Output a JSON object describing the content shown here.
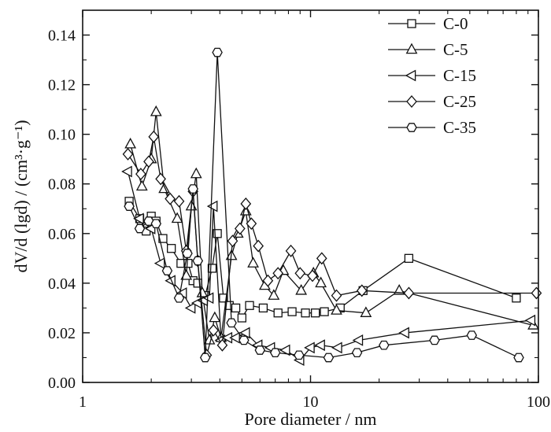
{
  "chart_data": {
    "type": "line",
    "xscale": "log",
    "xlim": [
      1,
      100
    ],
    "ylim": [
      0,
      0.15
    ],
    "xticks": [
      {
        "value": 1,
        "label": "1"
      },
      {
        "value": 10,
        "label": "10"
      },
      {
        "value": 100,
        "label": "100"
      }
    ],
    "yticks": [
      {
        "value": 0.0,
        "label": "0.00"
      },
      {
        "value": 0.02,
        "label": "0.02"
      },
      {
        "value": 0.04,
        "label": "0.04"
      },
      {
        "value": 0.06,
        "label": "0.06"
      },
      {
        "value": 0.08,
        "label": "0.08"
      },
      {
        "value": 0.1,
        "label": "0.10"
      },
      {
        "value": 0.12,
        "label": "0.12"
      },
      {
        "value": 0.14,
        "label": "0.14"
      }
    ],
    "xlabel": "Pore diameter / nm",
    "ylabel": "dV/d (lgd) / (cm³·g⁻¹)",
    "legend_position": "top-right",
    "grid": false,
    "series": [
      {
        "name": "C-0",
        "marker": "square",
        "x": [
          1.6,
          1.78,
          1.9,
          2.0,
          2.1,
          2.25,
          2.45,
          2.7,
          2.9,
          3.05,
          3.2,
          3.45,
          3.7,
          3.9,
          4.15,
          4.4,
          4.7,
          5.0,
          5.4,
          6.2,
          7.2,
          8.3,
          9.5,
          10.5,
          11.5,
          13.5,
          17,
          27,
          80
        ],
        "y": [
          0.073,
          0.066,
          0.061,
          0.067,
          0.065,
          0.058,
          0.054,
          0.048,
          0.048,
          0.041,
          0.04,
          0.035,
          0.046,
          0.06,
          0.034,
          0.031,
          0.03,
          0.026,
          0.031,
          0.03,
          0.028,
          0.0285,
          0.028,
          0.028,
          0.0285,
          0.03,
          0.037,
          0.05,
          0.034
        ]
      },
      {
        "name": "C-5",
        "marker": "triangle-up",
        "x": [
          1.62,
          1.82,
          2.0,
          2.1,
          2.28,
          2.6,
          2.85,
          3.0,
          3.15,
          3.35,
          3.6,
          3.8,
          4.05,
          4.5,
          4.8,
          5.2,
          5.6,
          6.3,
          6.9,
          7.6,
          9.1,
          10.3,
          11.1,
          13.0,
          17.5,
          24.5,
          95
        ],
        "y": [
          0.096,
          0.079,
          0.09,
          0.109,
          0.078,
          0.066,
          0.043,
          0.071,
          0.084,
          0.036,
          0.017,
          0.026,
          0.018,
          0.051,
          0.06,
          0.069,
          0.048,
          0.039,
          0.035,
          0.045,
          0.037,
          0.044,
          0.04,
          0.029,
          0.028,
          0.037,
          0.023
        ]
      },
      {
        "name": "C-15",
        "marker": "triangle-left",
        "x": [
          1.58,
          1.78,
          2.0,
          2.2,
          2.45,
          2.75,
          3.0,
          3.2,
          3.4,
          3.6,
          3.75,
          4.05,
          4.35,
          4.7,
          5.2,
          5.9,
          6.7,
          7.8,
          9.0,
          10.0,
          11.1,
          13.2,
          16.3,
          26,
          93
        ],
        "y": [
          0.085,
          0.066,
          0.062,
          0.048,
          0.041,
          0.036,
          0.03,
          0.032,
          0.033,
          0.034,
          0.071,
          0.017,
          0.018,
          0.018,
          0.02,
          0.015,
          0.014,
          0.013,
          0.009,
          0.014,
          0.015,
          0.014,
          0.017,
          0.02,
          0.025
        ]
      },
      {
        "name": "C-25",
        "marker": "diamond",
        "x": [
          1.58,
          1.8,
          1.95,
          2.05,
          2.2,
          2.42,
          2.65,
          2.85,
          3.05,
          3.2,
          3.5,
          3.75,
          4.1,
          4.55,
          4.9,
          5.2,
          5.5,
          5.9,
          6.5,
          7.2,
          8.2,
          9.0,
          10.2,
          11.2,
          13.0,
          16.8,
          27,
          98
        ],
        "y": [
          0.092,
          0.084,
          0.089,
          0.099,
          0.082,
          0.074,
          0.073,
          0.053,
          0.077,
          0.049,
          0.011,
          0.021,
          0.015,
          0.057,
          0.062,
          0.072,
          0.064,
          0.055,
          0.041,
          0.044,
          0.053,
          0.044,
          0.043,
          0.05,
          0.035,
          0.037,
          0.036,
          0.036
        ]
      },
      {
        "name": "C-35",
        "marker": "hexagon",
        "x": [
          1.6,
          1.78,
          1.95,
          2.1,
          2.35,
          2.65,
          2.88,
          3.05,
          3.2,
          3.45,
          3.9,
          4.5,
          5.1,
          6.0,
          7.0,
          8.9,
          12.0,
          16.0,
          21.0,
          35.0,
          51.0,
          82.0
        ],
        "y": [
          0.071,
          0.062,
          0.065,
          0.064,
          0.045,
          0.034,
          0.052,
          0.078,
          0.049,
          0.01,
          0.133,
          0.024,
          0.017,
          0.013,
          0.012,
          0.011,
          0.01,
          0.012,
          0.015,
          0.017,
          0.019,
          0.01
        ]
      }
    ]
  }
}
